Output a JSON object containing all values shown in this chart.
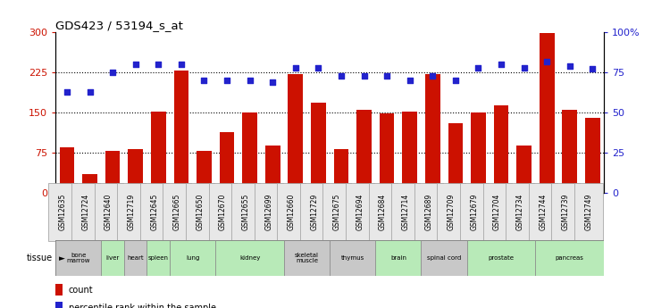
{
  "title": "GDS423 / 53194_s_at",
  "gsm_ids": [
    "GSM12635",
    "GSM12724",
    "GSM12640",
    "GSM12719",
    "GSM12645",
    "GSM12665",
    "GSM12650",
    "GSM12670",
    "GSM12655",
    "GSM12699",
    "GSM12660",
    "GSM12729",
    "GSM12675",
    "GSM12694",
    "GSM12684",
    "GSM12714",
    "GSM12689",
    "GSM12709",
    "GSM12679",
    "GSM12704",
    "GSM12734",
    "GSM12744",
    "GSM12739",
    "GSM12749"
  ],
  "counts": [
    85,
    35,
    78,
    82,
    152,
    228,
    78,
    113,
    150,
    88,
    222,
    168,
    82,
    155,
    148,
    152,
    222,
    130,
    150,
    163,
    88,
    298,
    155,
    140
  ],
  "percentile_ranks": [
    63,
    63,
    75,
    80,
    80,
    80,
    70,
    70,
    70,
    69,
    78,
    78,
    73,
    73,
    73,
    70,
    73,
    70,
    78,
    80,
    78,
    82,
    79,
    77
  ],
  "tissue_data": [
    {
      "label": "bone\nmarrow",
      "indices": [
        0,
        1
      ],
      "color": "#c8c8c8"
    },
    {
      "label": "liver",
      "indices": [
        2
      ],
      "color": "#b8eab8"
    },
    {
      "label": "heart",
      "indices": [
        3
      ],
      "color": "#c8c8c8"
    },
    {
      "label": "spleen",
      "indices": [
        4
      ],
      "color": "#b8eab8"
    },
    {
      "label": "lung",
      "indices": [
        5,
        6
      ],
      "color": "#b8eab8"
    },
    {
      "label": "kidney",
      "indices": [
        7,
        8,
        9
      ],
      "color": "#b8eab8"
    },
    {
      "label": "skeletal\nmuscle",
      "indices": [
        10,
        11
      ],
      "color": "#c8c8c8"
    },
    {
      "label": "thymus",
      "indices": [
        12,
        13
      ],
      "color": "#c8c8c8"
    },
    {
      "label": "brain",
      "indices": [
        14,
        15
      ],
      "color": "#b8eab8"
    },
    {
      "label": "spinal cord",
      "indices": [
        16,
        17
      ],
      "color": "#c8c8c8"
    },
    {
      "label": "prostate",
      "indices": [
        18,
        19,
        20
      ],
      "color": "#b8eab8"
    },
    {
      "label": "pancreas",
      "indices": [
        21,
        22,
        23
      ],
      "color": "#b8eab8"
    }
  ],
  "bar_color": "#cc1100",
  "dot_color": "#2222cc",
  "ylim_left": [
    0,
    300
  ],
  "ylim_right": [
    0,
    100
  ],
  "yticks_left": [
    0,
    75,
    150,
    225,
    300
  ],
  "yticks_right": [
    0,
    25,
    50,
    75,
    100
  ],
  "grid_lines": [
    75,
    150,
    225
  ]
}
